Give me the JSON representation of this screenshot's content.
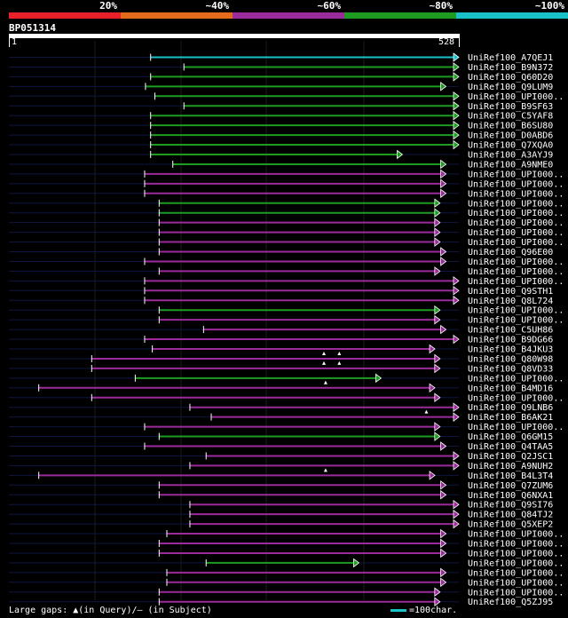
{
  "chart_data": {
    "type": "bar",
    "title": "BP051314",
    "query_length": 528,
    "axis": {
      "start_label": "1",
      "end_label": "528",
      "xlim": [
        1,
        528
      ]
    },
    "identity_legend": [
      {
        "label": "20%",
        "color": "#e8202a"
      },
      {
        "label": "~40%",
        "color": "#e46b1c"
      },
      {
        "label": "~60%",
        "color": "#9b2b9b"
      },
      {
        "label": "~80%",
        "color": "#1e9c22"
      },
      {
        "label": "~100%",
        "color": "#19c1c9"
      }
    ],
    "footer": {
      "gaps_text": "Large gaps: ▲(in Query)/— (in Subject)",
      "scale_text": "=100char."
    },
    "hits": [
      {
        "name": "UniRef100_A7QEJ1",
        "start": 167,
        "end": 528,
        "color": "#19c1c9"
      },
      {
        "name": "UniRef100_B9N372",
        "start": 206,
        "end": 528,
        "color": "#1e9c22"
      },
      {
        "name": "UniRef100_Q60D20",
        "start": 167,
        "end": 528,
        "color": "#1e9c22"
      },
      {
        "name": "UniRef100_Q9LUM9",
        "start": 161,
        "end": 513,
        "color": "#1e9c22"
      },
      {
        "name": "UniRef100_UPI000..",
        "start": 172,
        "end": 528,
        "color": "#1e9c22"
      },
      {
        "name": "UniRef100_B9SF63",
        "start": 206,
        "end": 528,
        "color": "#1e9c22"
      },
      {
        "name": "UniRef100_C5YAF8",
        "start": 167,
        "end": 528,
        "color": "#1e9c22"
      },
      {
        "name": "UniRef100_B6SU80",
        "start": 167,
        "end": 528,
        "color": "#1e9c22"
      },
      {
        "name": "UniRef100_D0ABD6",
        "start": 167,
        "end": 528,
        "color": "#1e9c22"
      },
      {
        "name": "UniRef100_Q7XQA0",
        "start": 167,
        "end": 528,
        "color": "#1e9c22"
      },
      {
        "name": "UniRef100_A3AYJ9",
        "start": 167,
        "end": 462,
        "color": "#1e9c22"
      },
      {
        "name": "UniRef100_A9NME0",
        "start": 193,
        "end": 513,
        "color": "#1e9c22"
      },
      {
        "name": "UniRef100_UPI000..",
        "start": 160,
        "end": 513,
        "color": "#9b2b9b"
      },
      {
        "name": "UniRef100_UPI000..",
        "start": 160,
        "end": 513,
        "color": "#9b2b9b"
      },
      {
        "name": "UniRef100_UPI000..",
        "start": 160,
        "end": 513,
        "color": "#9b2b9b"
      },
      {
        "name": "UniRef100_UPI000..",
        "start": 177,
        "end": 506,
        "color": "#1e9c22"
      },
      {
        "name": "UniRef100_UPI000..",
        "start": 177,
        "end": 506,
        "color": "#1e9c22"
      },
      {
        "name": "UniRef100_UPI000..",
        "start": 177,
        "end": 506,
        "color": "#9b2b9b"
      },
      {
        "name": "UniRef100_UPI000..",
        "start": 177,
        "end": 506,
        "color": "#9b2b9b"
      },
      {
        "name": "UniRef100_UPI000..",
        "start": 177,
        "end": 506,
        "color": "#9b2b9b"
      },
      {
        "name": "UniRef100_Q96E00",
        "start": 177,
        "end": 513,
        "color": "#9b2b9b"
      },
      {
        "name": "UniRef100_UPI000..",
        "start": 160,
        "end": 513,
        "color": "#9b2b9b"
      },
      {
        "name": "UniRef100_UPI000..",
        "start": 177,
        "end": 506,
        "color": "#9b2b9b"
      },
      {
        "name": "UniRef100_UPI000..",
        "start": 160,
        "end": 528,
        "color": "#9b2b9b"
      },
      {
        "name": "UniRef100_Q9STH1",
        "start": 160,
        "end": 528,
        "color": "#9b2b9b"
      },
      {
        "name": "UniRef100_Q8L724",
        "start": 160,
        "end": 528,
        "color": "#9b2b9b"
      },
      {
        "name": "UniRef100_UPI000..",
        "start": 177,
        "end": 506,
        "color": "#1e9c22"
      },
      {
        "name": "UniRef100_UPI000..",
        "start": 177,
        "end": 506,
        "color": "#9b2b9b"
      },
      {
        "name": "UniRef100_C5UH86",
        "start": 229,
        "end": 513,
        "color": "#9b2b9b"
      },
      {
        "name": "UniRef100_B9DG66",
        "start": 160,
        "end": 528,
        "color": "#9b2b9b"
      },
      {
        "name": "UniRef100_B4JKU3",
        "start": 169,
        "end": 500,
        "color": "#9b2b9b"
      },
      {
        "name": "UniRef100_Q80W98",
        "start": 98,
        "end": 506,
        "color": "#9b2b9b"
      },
      {
        "name": "UniRef100_Q8VD33",
        "start": 98,
        "end": 506,
        "color": "#9b2b9b"
      },
      {
        "name": "UniRef100_UPI000..",
        "start": 149,
        "end": 437,
        "color": "#1e9c22"
      },
      {
        "name": "UniRef100_B4MD16",
        "start": 36,
        "end": 500,
        "color": "#9b2b9b"
      },
      {
        "name": "UniRef100_UPI000..",
        "start": 98,
        "end": 506,
        "color": "#9b2b9b"
      },
      {
        "name": "UniRef100_Q9LNB6",
        "start": 213,
        "end": 528,
        "color": "#9b2b9b"
      },
      {
        "name": "UniRef100_B6AK21",
        "start": 238,
        "end": 528,
        "color": "#9b2b9b"
      },
      {
        "name": "UniRef100_UPI000..",
        "start": 160,
        "end": 506,
        "color": "#9b2b9b"
      },
      {
        "name": "UniRef100_Q6GM15",
        "start": 177,
        "end": 506,
        "color": "#1e9c22"
      },
      {
        "name": "UniRef100_Q4TAA5",
        "start": 160,
        "end": 513,
        "color": "#9b2b9b"
      },
      {
        "name": "UniRef100_Q2JSC1",
        "start": 232,
        "end": 528,
        "color": "#9b2b9b"
      },
      {
        "name": "UniRef100_A9NUH2",
        "start": 213,
        "end": 528,
        "color": "#9b2b9b"
      },
      {
        "name": "UniRef100_B4L3T4",
        "start": 36,
        "end": 500,
        "color": "#9b2b9b"
      },
      {
        "name": "UniRef100_Q7ZUM6",
        "start": 177,
        "end": 513,
        "color": "#9b2b9b"
      },
      {
        "name": "UniRef100_Q6NXA1",
        "start": 177,
        "end": 513,
        "color": "#9b2b9b"
      },
      {
        "name": "UniRef100_Q9SI76",
        "start": 213,
        "end": 528,
        "color": "#9b2b9b"
      },
      {
        "name": "UniRef100_Q84TJ2",
        "start": 213,
        "end": 528,
        "color": "#9b2b9b"
      },
      {
        "name": "UniRef100_Q5XEP2",
        "start": 213,
        "end": 528,
        "color": "#9b2b9b"
      },
      {
        "name": "UniRef100_UPI000..",
        "start": 186,
        "end": 513,
        "color": "#9b2b9b"
      },
      {
        "name": "UniRef100_UPI000..",
        "start": 177,
        "end": 513,
        "color": "#9b2b9b"
      },
      {
        "name": "UniRef100_UPI000..",
        "start": 177,
        "end": 513,
        "color": "#9b2b9b"
      },
      {
        "name": "UniRef100_UPI000..",
        "start": 232,
        "end": 411,
        "color": "#1e9c22"
      },
      {
        "name": "UniRef100_UPI000..",
        "start": 186,
        "end": 513,
        "color": "#9b2b9b"
      },
      {
        "name": "UniRef100_UPI000..",
        "start": 186,
        "end": 513,
        "color": "#9b2b9b"
      },
      {
        "name": "UniRef100_UPI000..",
        "start": 177,
        "end": 506,
        "color": "#9b2b9b"
      },
      {
        "name": "UniRef100_Q5ZJ95",
        "start": 177,
        "end": 506,
        "color": "#9b2b9b"
      }
    ],
    "gap_markers": [
      {
        "row": 31,
        "pos": 370
      },
      {
        "row": 31,
        "pos": 388
      },
      {
        "row": 32,
        "pos": 370
      },
      {
        "row": 32,
        "pos": 388
      },
      {
        "row": 34,
        "pos": 372
      },
      {
        "row": 37,
        "pos": 490
      },
      {
        "row": 43,
        "pos": 372
      }
    ]
  }
}
